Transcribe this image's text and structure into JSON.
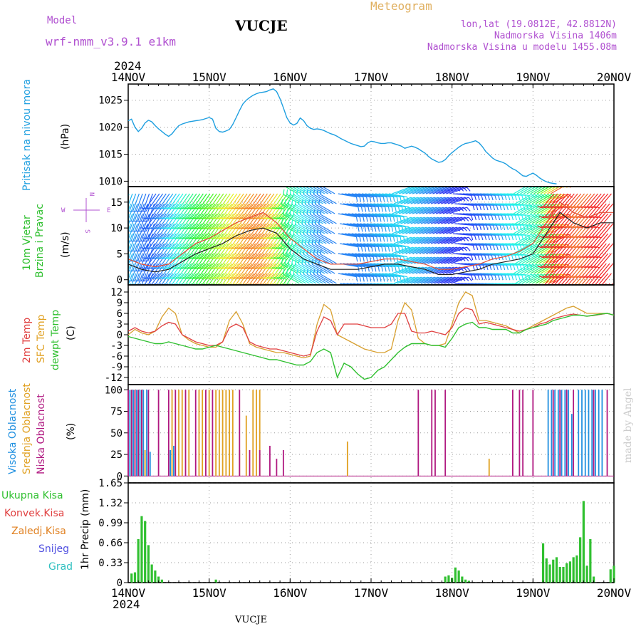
{
  "header": {
    "model_label": "Model",
    "model_name": "wrf-nmm_v3.9.1 e1km",
    "station": "VUCJE",
    "meteogram": "Meteogram",
    "lonlat": "lon,lat (19.0812E, 42.8812N)",
    "altitude": "Nadmorska Visina 1406m",
    "model_altitude": "Nadmorska Visina u modelu 1455.08m",
    "year_top": "2024",
    "year_bottom": "2024",
    "footer_station": "VUCJE",
    "credit": "made by Angel"
  },
  "colors": {
    "pressure": "#1e9fe0",
    "wind_speed": "#222222",
    "wind_gust": "#e0503a",
    "t2m": "#e04040",
    "tsfc": "#d8a030",
    "dewpt": "#30c030",
    "high_cloud": "#2090e0",
    "mid_cloud": "#e0a020",
    "low_cloud": "#b01880",
    "total_precip": "#30c030",
    "conv_precip": "#e04040",
    "frz_precip": "#e08020",
    "snow": "#5050e0",
    "hail": "#30c0c0",
    "legend_purple": "#b050d0",
    "meteogram_title": "#e0b060"
  },
  "x_ticks": [
    "14NOV",
    "15NOV",
    "16NOV",
    "17NOV",
    "18NOV",
    "19NOV",
    "20NOV"
  ],
  "panels": {
    "pressure": {
      "label_main": "Pritisak na nivou mora",
      "unit": "(hPa)",
      "yticks": [
        "1025",
        "1020",
        "1015",
        "1010"
      ]
    },
    "wind": {
      "label_line1": "10m Vjetar",
      "label_line2": "Brzina i Pravac",
      "unit": "(m/s)",
      "yticks": [
        "15",
        "10",
        "5",
        "0"
      ],
      "compass_n": "N",
      "compass_s": "S",
      "compass_w": "W",
      "compass_e": "E"
    },
    "temp": {
      "label_t2m": "2m Temp",
      "label_tsfc": "SFC Temp",
      "label_dew": "dewpt Temp",
      "unit": "(C)",
      "yticks": [
        "12",
        "9",
        "6",
        "3",
        "0",
        "-3",
        "-6",
        "-9",
        "-12"
      ]
    },
    "cloud": {
      "label_high": "Visoka Oblacnost",
      "label_mid": "Srednja Oblacnost",
      "label_low": "Niska Oblacnost",
      "unit": "(%)",
      "yticks": [
        "100",
        "75",
        "50",
        "25",
        "0"
      ]
    },
    "precip": {
      "label_total": "Ukupna Kisa",
      "label_conv": "Konvek.Kisa",
      "label_frz": "Zaledj.Kisa",
      "label_snow": "Snijeg",
      "label_hail": "Grad",
      "unit": "1hr Precip (mm)",
      "yticks": [
        "1.65",
        "1.32",
        "0.99",
        "0.66",
        "0.33",
        "0"
      ]
    }
  },
  "chart_data": [
    {
      "type": "line",
      "title": "Pritisak na nivou mora",
      "ylabel": "(hPa)",
      "xlim_hours": [
        0,
        144
      ],
      "ylim": [
        1009,
        1028
      ],
      "x_hours": [
        0,
        1,
        2,
        3,
        4,
        5,
        6,
        7,
        8,
        9,
        10,
        11,
        12,
        13,
        14,
        15,
        16,
        17,
        18,
        19,
        20,
        21,
        22,
        23,
        24,
        25,
        26,
        27,
        28,
        29,
        30,
        31,
        32,
        33,
        34,
        35,
        36,
        37,
        38,
        39,
        40,
        41,
        42,
        43,
        44,
        45,
        46,
        47,
        48,
        49,
        50,
        51,
        52,
        53,
        54,
        55,
        56,
        57,
        58,
        59,
        60,
        61,
        62,
        63,
        64,
        65,
        66,
        67,
        68,
        69,
        70,
        71,
        72,
        73,
        74,
        75,
        76,
        77,
        78,
        79,
        80,
        81,
        82,
        83,
        84,
        85,
        86,
        87,
        88,
        89,
        90,
        91,
        92,
        93,
        94,
        95,
        96,
        97,
        98,
        99,
        100,
        101,
        102,
        103,
        104,
        105,
        106,
        107,
        108,
        109,
        110,
        111,
        112,
        113,
        114,
        115,
        116,
        117,
        118,
        119,
        120,
        121,
        122,
        123,
        124,
        125,
        126,
        127,
        128,
        129,
        130,
        131,
        132,
        133,
        134,
        135,
        136,
        137,
        138,
        139,
        140,
        141,
        142,
        143,
        144
      ],
      "series": [
        {
          "values": [
            1021.2,
            1021.5,
            1020,
            1019.2,
            1019.8,
            1020.8,
            1021.3,
            1021,
            1020.3,
            1019.7,
            1019.2,
            1018.7,
            1018.3,
            1018.8,
            1019.6,
            1020.3,
            1020.6,
            1020.8,
            1021,
            1021.1,
            1021.2,
            1021.3,
            1021.4,
            1021.6,
            1021.8,
            1021.5,
            1019.8,
            1019.2,
            1019.1,
            1019.3,
            1019.6,
            1020.5,
            1021.8,
            1023.1,
            1024.3,
            1025,
            1025.5,
            1025.9,
            1026.2,
            1026.4,
            1026.5,
            1026.6,
            1026.9,
            1027.1,
            1026.6,
            1025.3,
            1023.6,
            1021.8,
            1020.8,
            1020.4,
            1020.7,
            1021.7,
            1021.2,
            1020.3,
            1019.8,
            1019.6,
            1019.7,
            1019.6,
            1019.4,
            1019.1,
            1018.8,
            1018.6,
            1018.3,
            1017.9,
            1017.6,
            1017.3,
            1017,
            1016.8,
            1016.6,
            1016.4,
            1016.5,
            1017.1,
            1017.4,
            1017.3,
            1017.1,
            1017,
            1017,
            1017.1,
            1017.1,
            1016.9,
            1016.7,
            1016.5,
            1016.1,
            1016.3,
            1016.5,
            1016.3,
            1016,
            1015.6,
            1015.2,
            1014.6,
            1014.1,
            1013.8,
            1013.5,
            1013.6,
            1014,
            1014.7,
            1015.3,
            1015.8,
            1016.3,
            1016.7,
            1017,
            1017.1,
            1017.3,
            1017.5,
            1017.1,
            1016.4,
            1015.5,
            1014.9,
            1014.3,
            1013.9,
            1013.7,
            1013.5,
            1013.2,
            1012.7,
            1012.3,
            1012,
            1011.5,
            1011,
            1010.9,
            1011.2,
            1011.5,
            1011.1,
            1010.6,
            1010.2,
            1009.9,
            1009.7,
            1009.6,
            1009.5
          ]
        }
      ]
    },
    {
      "type": "line",
      "title": "10m Vjetar Brzina i Pravac",
      "ylabel": "(m/s)",
      "xlim_hours": [
        0,
        144
      ],
      "ylim": [
        -1,
        18
      ],
      "x_hours": [
        0,
        4,
        8,
        12,
        16,
        20,
        24,
        28,
        32,
        36,
        40,
        44,
        48,
        52,
        56,
        60,
        64,
        68,
        72,
        76,
        80,
        84,
        88,
        92,
        96,
        100,
        104,
        108,
        112,
        116,
        120,
        124,
        128,
        132,
        136,
        140,
        144
      ],
      "series": [
        {
          "name": "speed",
          "values": [
            3,
            2,
            1.5,
            2,
            3.5,
            5,
            6,
            7,
            8.5,
            9.5,
            10,
            9,
            6,
            4,
            3,
            2,
            2,
            2,
            2.5,
            3,
            3,
            2.5,
            2,
            1,
            1,
            1.5,
            2,
            3,
            3.5,
            4,
            5,
            9,
            13,
            11,
            10,
            11,
            11
          ]
        },
        {
          "name": "gust",
          "values": [
            4,
            3,
            2.5,
            3,
            5,
            7,
            8,
            9.5,
            11,
            12,
            13,
            11,
            8,
            6,
            4,
            3,
            3,
            3,
            3.5,
            4,
            4,
            3.5,
            3,
            2,
            2,
            2.5,
            3,
            4,
            4.5,
            5.5,
            7,
            11,
            15,
            13,
            12,
            13,
            13
          ]
        }
      ]
    },
    {
      "type": "line",
      "title": "2m Temp / SFC Temp / dewpt Temp",
      "ylabel": "(C)",
      "xlim_hours": [
        0,
        144
      ],
      "ylim": [
        -14,
        14
      ],
      "x_hours": [
        0,
        2,
        4,
        6,
        8,
        10,
        12,
        14,
        16,
        18,
        20,
        22,
        24,
        26,
        28,
        30,
        32,
        34,
        36,
        38,
        40,
        42,
        44,
        46,
        48,
        50,
        52,
        54,
        56,
        58,
        60,
        62,
        64,
        66,
        68,
        70,
        72,
        74,
        76,
        78,
        80,
        82,
        84,
        86,
        88,
        90,
        92,
        94,
        96,
        98,
        100,
        102,
        104,
        106,
        108,
        110,
        112,
        114,
        116,
        118,
        120,
        122,
        124,
        126,
        128,
        130,
        132,
        134,
        136,
        138,
        140,
        142,
        144
      ],
      "series": [
        {
          "name": "2m Temp",
          "values": [
            1,
            2,
            1,
            0.5,
            1,
            2.5,
            3.5,
            3,
            0,
            -1,
            -2,
            -2.5,
            -3,
            -3,
            -2,
            2,
            3,
            2,
            -2,
            -3,
            -3.5,
            -4,
            -4,
            -4.5,
            -5,
            -5.5,
            -6,
            -5.5,
            1,
            5,
            4,
            0,
            3,
            3,
            3,
            2.5,
            2,
            2,
            2,
            3,
            6,
            6,
            1,
            0.5,
            0.5,
            1,
            0.5,
            0,
            2,
            6,
            7.5,
            7,
            3,
            3.5,
            3,
            2.5,
            2,
            1.5,
            1,
            1.5,
            2,
            3,
            3.5,
            4.5,
            5,
            5.5,
            5.8,
            5.5,
            5.2,
            5.4,
            5.7,
            6,
            5.5
          ]
        },
        {
          "name": "SFC Temp",
          "values": [
            0,
            1.5,
            0.5,
            0,
            1,
            5,
            7.5,
            6,
            0,
            -1.5,
            -2.5,
            -3,
            -3.5,
            -3.5,
            -2,
            4,
            6.5,
            3,
            -2.5,
            -3.5,
            -4,
            -4.5,
            -5,
            -5,
            -5.5,
            -6,
            -6.5,
            -6,
            3,
            8.5,
            7,
            0,
            -1,
            -2,
            -3,
            -4,
            -4.5,
            -5,
            -5,
            -4,
            4,
            9,
            7,
            -1,
            -2.5,
            -3,
            -3,
            -2.5,
            3,
            9,
            12,
            11,
            4,
            4,
            3.5,
            3,
            2.5,
            1.5,
            0.5,
            1.5,
            2.5,
            3.5,
            4.5,
            5.5,
            6.5,
            7.5,
            8,
            7,
            6,
            6,
            6,
            6,
            5.5
          ]
        },
        {
          "name": "dewpt Temp",
          "values": [
            -0.5,
            -1,
            -1.5,
            -2,
            -2.5,
            -2.5,
            -2,
            -2.5,
            -3,
            -3.5,
            -4,
            -4,
            -3.5,
            -3,
            -3.5,
            -4,
            -4.5,
            -5,
            -5.5,
            -6,
            -6.5,
            -7,
            -7,
            -7.5,
            -8,
            -8.5,
            -8.5,
            -7.5,
            -5,
            -4,
            -5,
            -12,
            -8,
            -9,
            -11,
            -12.5,
            -12,
            -10,
            -9,
            -7,
            -5,
            -3.5,
            -2.5,
            -2.5,
            -2.5,
            -3,
            -3,
            -3.5,
            -1,
            2,
            3,
            3.5,
            2,
            2,
            1.5,
            1.5,
            1.5,
            0.5,
            0.5,
            1.5,
            2,
            2.5,
            3,
            4,
            4.5,
            5,
            5.5,
            5.5,
            5.2,
            5.5,
            5.8,
            6,
            5.5
          ]
        }
      ]
    },
    {
      "type": "bar",
      "title": "Visoka / Srednja / Niska Oblacnost",
      "ylabel": "(%)",
      "xlim_hours": [
        0,
        144
      ],
      "ylim": [
        0,
        100
      ],
      "series": [
        {
          "name": "Visoka Oblacnost",
          "x_hours": [
            0.5,
            1.5,
            2.5,
            3.5,
            4.5,
            5.5,
            6.5,
            12.5,
            13.5,
            124.5,
            125.5,
            126.5,
            127.5,
            128.5,
            129.5,
            130.5,
            131.5,
            133.5,
            134.5,
            135.5,
            136.5,
            137.5,
            138.5,
            139.5,
            140.5
          ],
          "values": [
            100,
            100,
            100,
            100,
            100,
            100,
            28,
            30,
            35,
            100,
            100,
            100,
            100,
            100,
            100,
            100,
            72,
            100,
            100,
            100,
            100,
            100,
            100,
            100,
            100
          ]
        },
        {
          "name": "Srednja Oblacnost",
          "x_hours": [
            1,
            2,
            3,
            4,
            5,
            13,
            15,
            16,
            18,
            21,
            22,
            24,
            26,
            27,
            28,
            29,
            30,
            31,
            33,
            35,
            37,
            38,
            39,
            65,
            107
          ],
          "values": [
            100,
            100,
            100,
            100,
            30,
            100,
            100,
            100,
            100,
            100,
            100,
            100,
            100,
            100,
            100,
            100,
            100,
            100,
            30,
            70,
            100,
            100,
            100,
            40,
            20
          ]
        },
        {
          "name": "Niska Oblacnost",
          "x_hours": [
            0,
            1,
            2,
            3,
            4,
            6,
            9,
            12,
            14,
            17,
            20,
            23,
            25,
            33,
            36,
            39,
            42,
            44,
            46,
            86,
            90,
            91,
            94,
            114,
            116,
            117,
            120,
            126,
            128,
            130,
            132,
            138,
            142
          ],
          "values": [
            100,
            100,
            100,
            100,
            100,
            100,
            100,
            100,
            100,
            100,
            100,
            100,
            100,
            100,
            30,
            30,
            35,
            20,
            30,
            100,
            100,
            100,
            100,
            100,
            100,
            100,
            100,
            100,
            100,
            100,
            100,
            100,
            100
          ]
        }
      ]
    },
    {
      "type": "bar",
      "title": "1hr Precip",
      "ylabel": "(mm)",
      "xlim_hours": [
        0,
        144
      ],
      "ylim": [
        0,
        1.65
      ],
      "series": [
        {
          "name": "Ukupna Kisa",
          "x_hours": [
            1,
            2,
            3,
            4,
            5,
            6,
            7,
            8,
            9,
            10,
            26,
            94,
            95,
            96,
            97,
            98,
            99,
            100,
            101,
            123,
            124,
            125,
            126,
            127,
            128,
            129,
            130,
            131,
            132,
            133,
            134,
            135,
            136,
            137,
            138,
            143,
            144
          ],
          "values": [
            0.15,
            0.17,
            0.72,
            1.1,
            1.02,
            0.62,
            0.3,
            0.2,
            0.1,
            0.05,
            0.05,
            0.1,
            0.12,
            0.08,
            0.25,
            0.2,
            0.1,
            0.05,
            0.03,
            0.65,
            0.4,
            0.3,
            0.38,
            0.42,
            0.26,
            0.26,
            0.32,
            0.35,
            0.42,
            0.45,
            0.75,
            1.35,
            0.28,
            0.72,
            0.1,
            0.22,
            0.28
          ]
        }
      ]
    }
  ]
}
